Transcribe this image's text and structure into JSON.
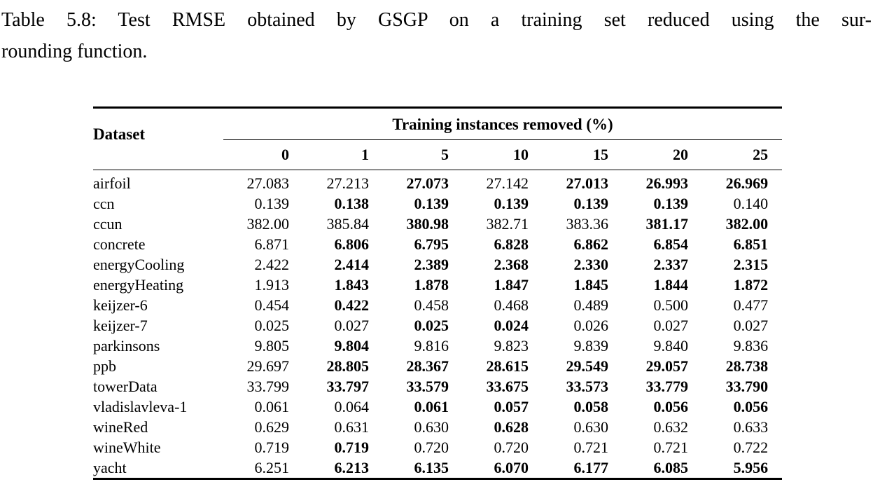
{
  "caption": {
    "line1": "Table 5.8: Test RMSE obtained by GSGP on a training set reduced using the sur-",
    "line2": "rounding function."
  },
  "table": {
    "dataset_header": "Dataset",
    "group_header": "Training instances removed (%)",
    "columns": [
      "0",
      "1",
      "5",
      "10",
      "15",
      "20",
      "25"
    ],
    "rows": [
      {
        "name": "airfoil",
        "cells": [
          {
            "v": "27.083",
            "b": false
          },
          {
            "v": "27.213",
            "b": false
          },
          {
            "v": "27.073",
            "b": true
          },
          {
            "v": "27.142",
            "b": false
          },
          {
            "v": "27.013",
            "b": true
          },
          {
            "v": "26.993",
            "b": true
          },
          {
            "v": "26.969",
            "b": true
          }
        ]
      },
      {
        "name": "ccn",
        "cells": [
          {
            "v": "0.139",
            "b": false
          },
          {
            "v": "0.138",
            "b": true
          },
          {
            "v": "0.139",
            "b": true
          },
          {
            "v": "0.139",
            "b": true
          },
          {
            "v": "0.139",
            "b": true
          },
          {
            "v": "0.139",
            "b": true
          },
          {
            "v": "0.140",
            "b": false
          }
        ]
      },
      {
        "name": "ccun",
        "cells": [
          {
            "v": "382.00",
            "b": false
          },
          {
            "v": "385.84",
            "b": false
          },
          {
            "v": "380.98",
            "b": true
          },
          {
            "v": "382.71",
            "b": false
          },
          {
            "v": "383.36",
            "b": false
          },
          {
            "v": "381.17",
            "b": true
          },
          {
            "v": "382.00",
            "b": true
          }
        ]
      },
      {
        "name": "concrete",
        "cells": [
          {
            "v": "6.871",
            "b": false
          },
          {
            "v": "6.806",
            "b": true
          },
          {
            "v": "6.795",
            "b": true
          },
          {
            "v": "6.828",
            "b": true
          },
          {
            "v": "6.862",
            "b": true
          },
          {
            "v": "6.854",
            "b": true
          },
          {
            "v": "6.851",
            "b": true
          }
        ]
      },
      {
        "name": "energyCooling",
        "cells": [
          {
            "v": "2.422",
            "b": false
          },
          {
            "v": "2.414",
            "b": true
          },
          {
            "v": "2.389",
            "b": true
          },
          {
            "v": "2.368",
            "b": true
          },
          {
            "v": "2.330",
            "b": true
          },
          {
            "v": "2.337",
            "b": true
          },
          {
            "v": "2.315",
            "b": true
          }
        ]
      },
      {
        "name": "energyHeating",
        "cells": [
          {
            "v": "1.913",
            "b": false
          },
          {
            "v": "1.843",
            "b": true
          },
          {
            "v": "1.878",
            "b": true
          },
          {
            "v": "1.847",
            "b": true
          },
          {
            "v": "1.845",
            "b": true
          },
          {
            "v": "1.844",
            "b": true
          },
          {
            "v": "1.872",
            "b": true
          }
        ]
      },
      {
        "name": "keijzer-6",
        "cells": [
          {
            "v": "0.454",
            "b": false
          },
          {
            "v": "0.422",
            "b": true
          },
          {
            "v": "0.458",
            "b": false
          },
          {
            "v": "0.468",
            "b": false
          },
          {
            "v": "0.489",
            "b": false
          },
          {
            "v": "0.500",
            "b": false
          },
          {
            "v": "0.477",
            "b": false
          }
        ]
      },
      {
        "name": "keijzer-7",
        "cells": [
          {
            "v": "0.025",
            "b": false
          },
          {
            "v": "0.027",
            "b": false
          },
          {
            "v": "0.025",
            "b": true
          },
          {
            "v": "0.024",
            "b": true
          },
          {
            "v": "0.026",
            "b": false
          },
          {
            "v": "0.027",
            "b": false
          },
          {
            "v": "0.027",
            "b": false
          }
        ]
      },
      {
        "name": "parkinsons",
        "cells": [
          {
            "v": "9.805",
            "b": false
          },
          {
            "v": "9.804",
            "b": true
          },
          {
            "v": "9.816",
            "b": false
          },
          {
            "v": "9.823",
            "b": false
          },
          {
            "v": "9.839",
            "b": false
          },
          {
            "v": "9.840",
            "b": false
          },
          {
            "v": "9.836",
            "b": false
          }
        ]
      },
      {
        "name": "ppb",
        "cells": [
          {
            "v": "29.697",
            "b": false
          },
          {
            "v": "28.805",
            "b": true
          },
          {
            "v": "28.367",
            "b": true
          },
          {
            "v": "28.615",
            "b": true
          },
          {
            "v": "29.549",
            "b": true
          },
          {
            "v": "29.057",
            "b": true
          },
          {
            "v": "28.738",
            "b": true
          }
        ]
      },
      {
        "name": "towerData",
        "cells": [
          {
            "v": "33.799",
            "b": false
          },
          {
            "v": "33.797",
            "b": true
          },
          {
            "v": "33.579",
            "b": true
          },
          {
            "v": "33.675",
            "b": true
          },
          {
            "v": "33.573",
            "b": true
          },
          {
            "v": "33.779",
            "b": true
          },
          {
            "v": "33.790",
            "b": true
          }
        ]
      },
      {
        "name": "vladislavleva-1",
        "cells": [
          {
            "v": "0.061",
            "b": false
          },
          {
            "v": "0.064",
            "b": false
          },
          {
            "v": "0.061",
            "b": true
          },
          {
            "v": "0.057",
            "b": true
          },
          {
            "v": "0.058",
            "b": true
          },
          {
            "v": "0.056",
            "b": true
          },
          {
            "v": "0.056",
            "b": true
          }
        ]
      },
      {
        "name": "wineRed",
        "cells": [
          {
            "v": "0.629",
            "b": false
          },
          {
            "v": "0.631",
            "b": false
          },
          {
            "v": "0.630",
            "b": false
          },
          {
            "v": "0.628",
            "b": true
          },
          {
            "v": "0.630",
            "b": false
          },
          {
            "v": "0.632",
            "b": false
          },
          {
            "v": "0.633",
            "b": false
          }
        ]
      },
      {
        "name": "wineWhite",
        "cells": [
          {
            "v": "0.719",
            "b": false
          },
          {
            "v": "0.719",
            "b": true
          },
          {
            "v": "0.720",
            "b": false
          },
          {
            "v": "0.720",
            "b": false
          },
          {
            "v": "0.721",
            "b": false
          },
          {
            "v": "0.721",
            "b": false
          },
          {
            "v": "0.722",
            "b": false
          }
        ]
      },
      {
        "name": "yacht",
        "cells": [
          {
            "v": "6.251",
            "b": false
          },
          {
            "v": "6.213",
            "b": true
          },
          {
            "v": "6.135",
            "b": true
          },
          {
            "v": "6.070",
            "b": true
          },
          {
            "v": "6.177",
            "b": true
          },
          {
            "v": "6.085",
            "b": true
          },
          {
            "v": "5.956",
            "b": true
          }
        ]
      }
    ]
  }
}
